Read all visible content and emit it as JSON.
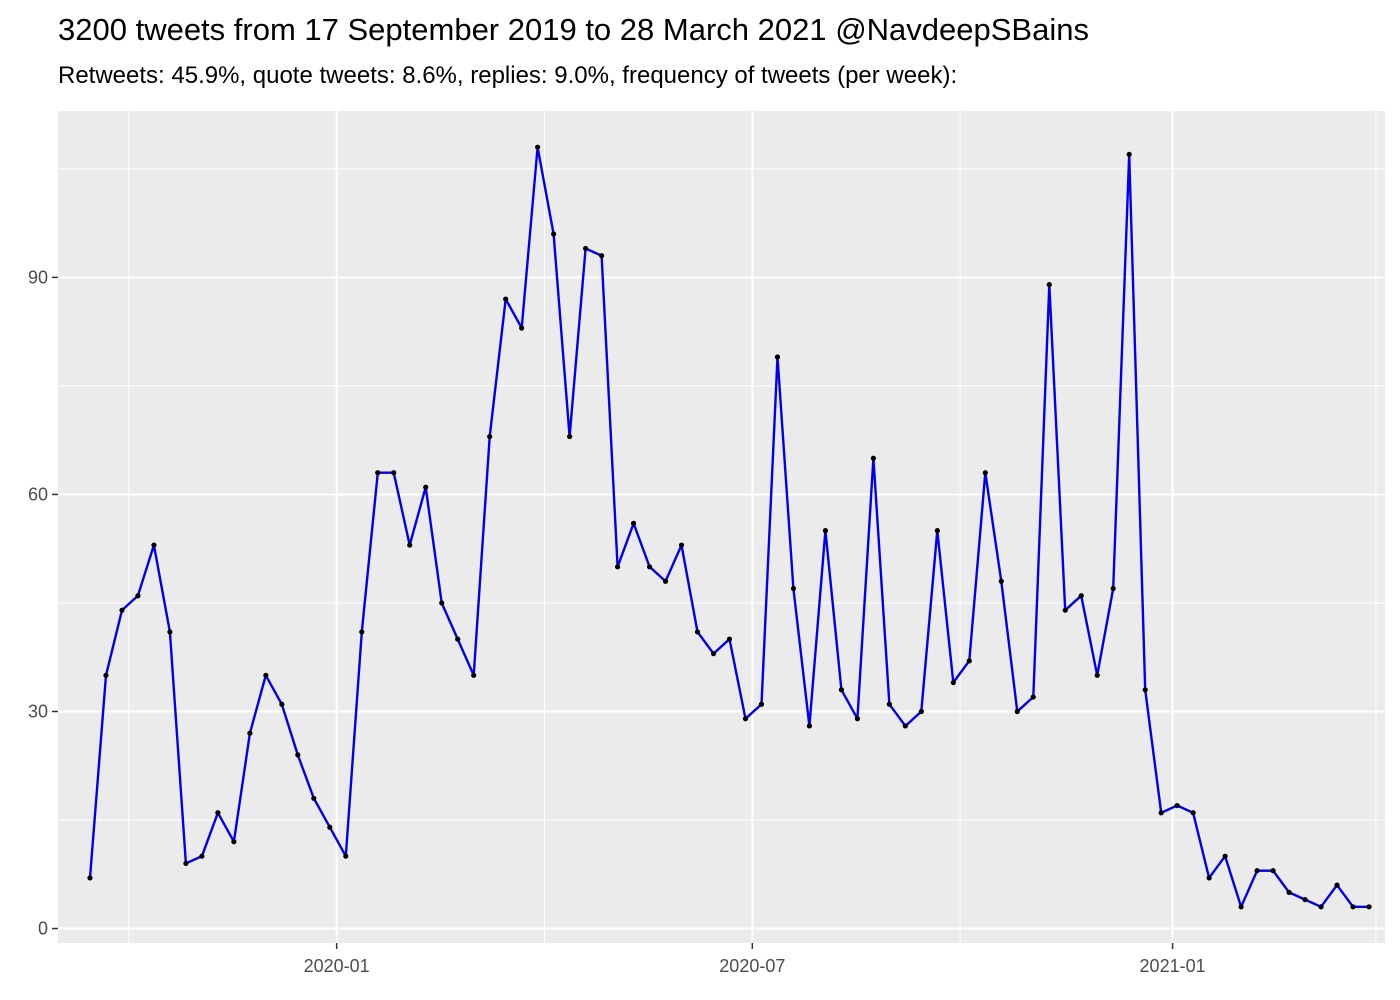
{
  "chart_data": {
    "type": "line",
    "title": "3200 tweets from 17 September 2019 to 28 March 2021 @NavdeepSBains",
    "subtitle": "Retweets: 45.9%, quote tweets: 8.6%, replies: 9.0%, frequency of tweets (per week):",
    "xlabel": "",
    "ylabel": "",
    "x_axis": {
      "type": "date",
      "range": [
        "2019-09-01",
        "2021-04-04"
      ],
      "ticks": [
        "2020-01-01",
        "2020-07-01",
        "2021-01-01"
      ],
      "tick_labels": [
        "2020-01",
        "2020-07",
        "2021-01"
      ]
    },
    "y_axis": {
      "range": [
        -2,
        113
      ],
      "ticks": [
        0,
        30,
        60,
        90
      ],
      "tick_labels": [
        "0",
        "30",
        "60",
        "90"
      ]
    },
    "grid": true,
    "legend": "none",
    "colors": {
      "panel": "#EBEBEB",
      "grid": "#FFFFFF",
      "line": "#0000EE",
      "points": "#000000"
    },
    "series": [
      {
        "x": [
          "2019-09-15",
          "2019-09-22",
          "2019-09-29",
          "2019-10-06",
          "2019-10-13",
          "2019-10-20",
          "2019-10-27",
          "2019-11-03",
          "2019-11-10",
          "2019-11-17",
          "2019-11-24",
          "2019-12-01",
          "2019-12-08",
          "2019-12-15",
          "2019-12-22",
          "2019-12-29",
          "2020-01-05",
          "2020-01-12",
          "2020-01-19",
          "2020-01-26",
          "2020-02-02",
          "2020-02-09",
          "2020-02-16",
          "2020-02-23",
          "2020-03-01",
          "2020-03-08",
          "2020-03-15",
          "2020-03-22",
          "2020-03-29",
          "2020-04-05",
          "2020-04-12",
          "2020-04-19",
          "2020-04-26",
          "2020-05-03",
          "2020-05-10",
          "2020-05-17",
          "2020-05-24",
          "2020-05-31",
          "2020-06-07",
          "2020-06-14",
          "2020-06-21",
          "2020-06-28",
          "2020-07-05",
          "2020-07-12",
          "2020-07-19",
          "2020-07-26",
          "2020-08-02",
          "2020-08-09",
          "2020-08-16",
          "2020-08-23",
          "2020-08-30",
          "2020-09-06",
          "2020-09-13",
          "2020-09-20",
          "2020-09-27",
          "2020-10-04",
          "2020-10-11",
          "2020-10-18",
          "2020-10-25",
          "2020-11-01",
          "2020-11-08",
          "2020-11-15",
          "2020-11-22",
          "2020-11-29",
          "2020-12-06",
          "2020-12-13",
          "2020-12-20",
          "2020-12-27",
          "2021-01-03",
          "2021-01-10",
          "2021-01-17",
          "2021-01-24",
          "2021-01-31",
          "2021-02-07",
          "2021-02-14",
          "2021-02-21",
          "2021-02-28",
          "2021-03-07",
          "2021-03-14",
          "2021-03-21",
          "2021-03-28"
        ],
        "values": [
          7,
          35,
          44,
          46,
          53,
          41,
          9,
          10,
          16,
          12,
          27,
          35,
          31,
          24,
          18,
          14,
          10,
          41,
          63,
          63,
          53,
          61,
          45,
          40,
          35,
          68,
          87,
          83,
          108,
          96,
          68,
          94,
          93,
          50,
          56,
          50,
          48,
          53,
          41,
          38,
          40,
          29,
          31,
          79,
          47,
          28,
          55,
          33,
          29,
          65,
          31,
          28,
          30,
          55,
          34,
          37,
          63,
          48,
          30,
          32,
          89,
          44,
          46,
          35,
          47,
          107,
          33,
          16,
          17,
          16,
          7,
          10,
          3,
          8,
          8,
          5,
          4,
          3,
          6,
          3,
          3
        ]
      }
    ]
  }
}
